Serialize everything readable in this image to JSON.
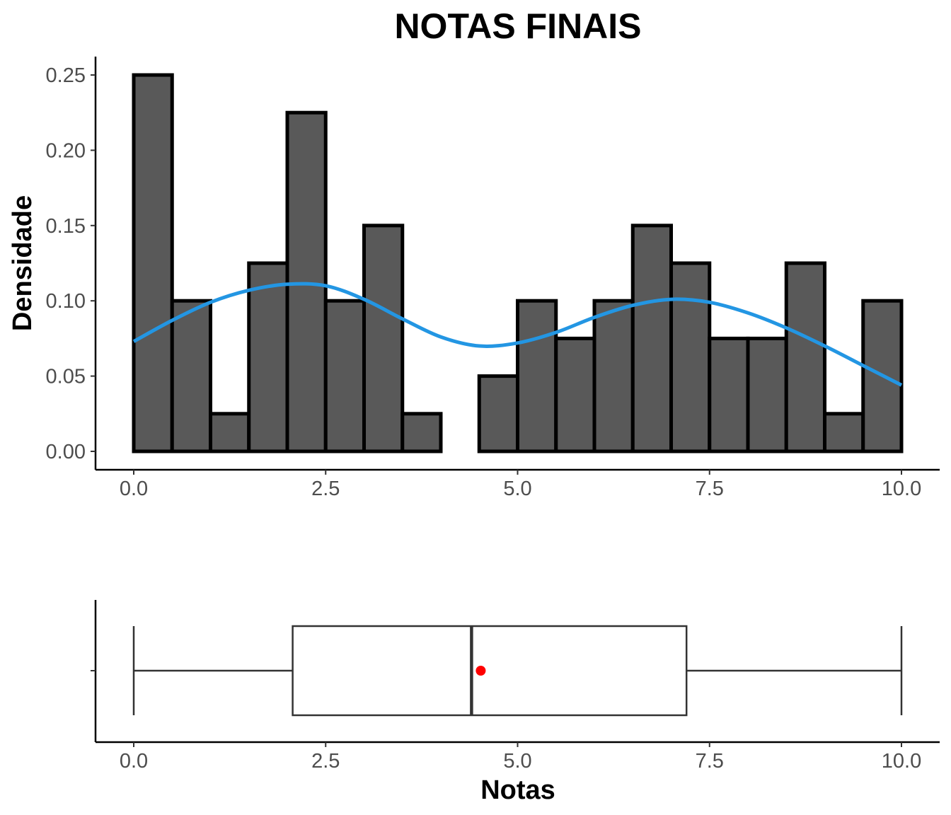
{
  "chart_data": [
    {
      "type": "histogram",
      "title": "NOTAS FINAIS",
      "ylabel": "Densidade",
      "xlabel": "",
      "bin_width": 0.5,
      "bin_starts": [
        0,
        0.5,
        1,
        1.5,
        2,
        2.5,
        3,
        3.5,
        4,
        4.5,
        5,
        5.5,
        6,
        6.5,
        7,
        7.5,
        8,
        8.5,
        9,
        9.5
      ],
      "values": [
        0.25,
        0.1,
        0.025,
        0.125,
        0.225,
        0.1,
        0.15,
        0.025,
        0.0,
        0.05,
        0.1,
        0.075,
        0.1,
        0.15,
        0.125,
        0.075,
        0.075,
        0.125,
        0.025,
        0.1
      ],
      "density_curve": {
        "x": [
          0,
          0.5,
          1,
          1.5,
          2,
          2.5,
          3,
          3.5,
          4,
          4.5,
          5,
          5.5,
          6,
          6.5,
          7,
          7.5,
          8,
          8.5,
          9,
          9.5,
          10
        ],
        "y": [
          0.073,
          0.087,
          0.099,
          0.107,
          0.111,
          0.11,
          0.101,
          0.088,
          0.076,
          0.07,
          0.072,
          0.079,
          0.089,
          0.097,
          0.101,
          0.099,
          0.092,
          0.082,
          0.07,
          0.057,
          0.044
        ],
        "color": "#2396e3"
      },
      "bar_fill": "#595959",
      "xlim": [
        -0.5,
        11.0
      ],
      "ylim": [
        -0.0125,
        0.262
      ],
      "x_ticks": [
        "0.0",
        "2.5",
        "5.0",
        "7.5",
        "10.0"
      ],
      "y_ticks": [
        "0.00",
        "0.05",
        "0.10",
        "0.15",
        "0.20",
        "0.25"
      ],
      "grid": false
    },
    {
      "type": "boxplot",
      "xlabel": "Notas",
      "min": 0,
      "q1": 2.07,
      "median": 4.4,
      "q3": 7.2,
      "max": 10,
      "mean": 4.52,
      "mean_color": "#ff0000",
      "xlim": [
        -0.5,
        11.0
      ],
      "x_ticks": [
        "0.0",
        "2.5",
        "5.0",
        "7.5",
        "10.0"
      ],
      "grid": false
    }
  ]
}
